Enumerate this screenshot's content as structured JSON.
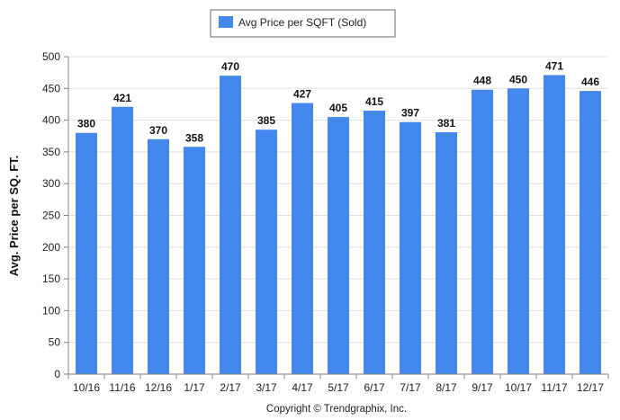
{
  "chart_data": {
    "type": "bar",
    "legend": "Avg Price per SQFT (Sold)",
    "legend_position": "top-center",
    "ylabel": "Avg. Price per SQ. FT.",
    "xlabel": "",
    "ylim": [
      0,
      500
    ],
    "yticks": [
      "0",
      "50",
      "100",
      "150",
      "200",
      "250",
      "300",
      "350",
      "400",
      "450",
      "500"
    ],
    "grid": true,
    "categories": [
      "10/16",
      "11/16",
      "12/16",
      "1/17",
      "2/17",
      "3/17",
      "4/17",
      "5/17",
      "6/17",
      "7/17",
      "8/17",
      "9/17",
      "10/17",
      "11/17",
      "12/17"
    ],
    "series": [
      {
        "name": "Avg Price per SQFT (Sold)",
        "color": "#4488ee",
        "values": [
          380,
          421,
          370,
          358,
          470,
          385,
          427,
          405,
          415,
          397,
          381,
          448,
          450,
          471,
          446
        ]
      }
    ],
    "copyright": "Copyright © Trendgraphix, Inc."
  }
}
